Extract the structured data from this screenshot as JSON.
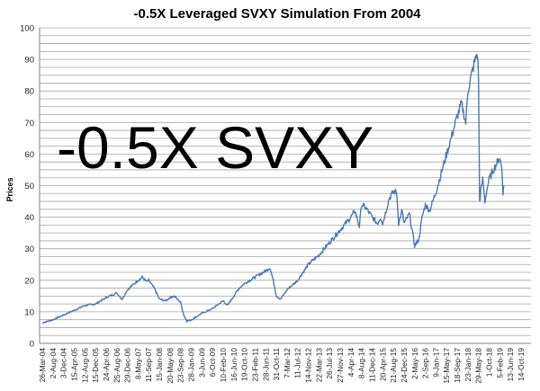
{
  "chart_data": {
    "type": "line",
    "title": "-0.5X Leveraged SVXY Simulation From 2004",
    "ylabel": "Prices",
    "xlabel": "",
    "ylim": [
      0,
      100
    ],
    "yticks": [
      0,
      10,
      20,
      30,
      40,
      50,
      60,
      70,
      80,
      90,
      100
    ],
    "grid": "horizontal",
    "legend": "none",
    "overlay_text": "-0.5X SVXY",
    "line_color": "#4a78b4",
    "x_tick_labels": [
      "26-Mar-04",
      "2-Aug-04",
      "3-Dec-04",
      "15-Apr-05",
      "12-Aug-05",
      "15-Dec-05",
      "24-Apr-06",
      "25-Aug-06",
      "29-Dec-06",
      "8-May-07",
      "11-Sep-07",
      "15-Jan-08",
      "20-May-08",
      "23-Sep-08",
      "28-Jan-09",
      "3-Jun-09",
      "6-Oct-09",
      "10-Feb-10",
      "16-Jun-10",
      "19-Oct-10",
      "23-Feb-11",
      "28-Jun-11",
      "31-Oct-11",
      "7-Mar-12",
      "11-Jul-12",
      "14-Nov-12",
      "22-Mar-13",
      "26-Jul-13",
      "27-Nov-13",
      "4-Apr-14",
      "8-Aug-14",
      "11-Dec-14",
      "20-Apr-15",
      "21-Aug-15",
      "24-Dec-15",
      "2-May-16",
      "2-Sep-16",
      "9-Jan-17",
      "15-May-17",
      "18-Sep-17",
      "23-Jan-18",
      "29-May-18",
      "1-Oct-18",
      "5-Feb-19",
      "13-Jun-19",
      "14-Oct-19"
    ],
    "series": [
      {
        "values_by_tick_index": [
          [
            0,
            6.5
          ],
          [
            1,
            7.5
          ],
          [
            2,
            9
          ],
          [
            3,
            10.5
          ],
          [
            4,
            12
          ],
          [
            5,
            12.5
          ],
          [
            6,
            14.5
          ],
          [
            7,
            16
          ],
          [
            7.5,
            14
          ],
          [
            8,
            17
          ],
          [
            9,
            20
          ],
          [
            9.4,
            21
          ],
          [
            9.8,
            19.5
          ],
          [
            10,
            20
          ],
          [
            10.6,
            17
          ],
          [
            11,
            14
          ],
          [
            11.6,
            13.5
          ],
          [
            12,
            14.5
          ],
          [
            12.4,
            15
          ],
          [
            12.7,
            14
          ],
          [
            13,
            13
          ],
          [
            13.3,
            9
          ],
          [
            13.6,
            7
          ],
          [
            14,
            7.5
          ],
          [
            14.5,
            8.5
          ],
          [
            15,
            9.5
          ],
          [
            16,
            11
          ],
          [
            17,
            13.5
          ],
          [
            17.4,
            12
          ],
          [
            18,
            15
          ],
          [
            18.5,
            17.5
          ],
          [
            19,
            19
          ],
          [
            20,
            21
          ],
          [
            20.5,
            22
          ],
          [
            21,
            23
          ],
          [
            21.4,
            24
          ],
          [
            21.7,
            20
          ],
          [
            22,
            15
          ],
          [
            22.4,
            14
          ],
          [
            22.8,
            16
          ],
          [
            23,
            17
          ],
          [
            24,
            20
          ],
          [
            25,
            25
          ],
          [
            26,
            28
          ],
          [
            27,
            32
          ],
          [
            28,
            36
          ],
          [
            28.5,
            38
          ],
          [
            29,
            40
          ],
          [
            29.4,
            42
          ],
          [
            29.8,
            37
          ],
          [
            30,
            44
          ],
          [
            30.4,
            43
          ],
          [
            31,
            40
          ],
          [
            31.5,
            38
          ],
          [
            31.8,
            40
          ],
          [
            32,
            38
          ],
          [
            32.6,
            46
          ],
          [
            33,
            48
          ],
          [
            33.3,
            48
          ],
          [
            33.5,
            38
          ],
          [
            33.8,
            42
          ],
          [
            34,
            38
          ],
          [
            34.5,
            41
          ],
          [
            35,
            31
          ],
          [
            35.4,
            33
          ],
          [
            35.7,
            40
          ],
          [
            36,
            44
          ],
          [
            36.4,
            42
          ],
          [
            37,
            48
          ],
          [
            37.5,
            54
          ],
          [
            38,
            60
          ],
          [
            38.5,
            66
          ],
          [
            39,
            72
          ],
          [
            39.4,
            76
          ],
          [
            39.8,
            70
          ],
          [
            40,
            80
          ],
          [
            40.4,
            86
          ],
          [
            40.7,
            90
          ],
          [
            40.9,
            92
          ],
          [
            41,
            84
          ],
          [
            41.1,
            45
          ],
          [
            41.2,
            48
          ],
          [
            41.4,
            52
          ],
          [
            41.6,
            45
          ],
          [
            41.8,
            49
          ],
          [
            42,
            52
          ],
          [
            42.4,
            55
          ],
          [
            42.7,
            57
          ],
          [
            43,
            59
          ],
          [
            43.2,
            55
          ],
          [
            43.3,
            48
          ],
          [
            43.4,
            50
          ]
        ]
      }
    ]
  }
}
